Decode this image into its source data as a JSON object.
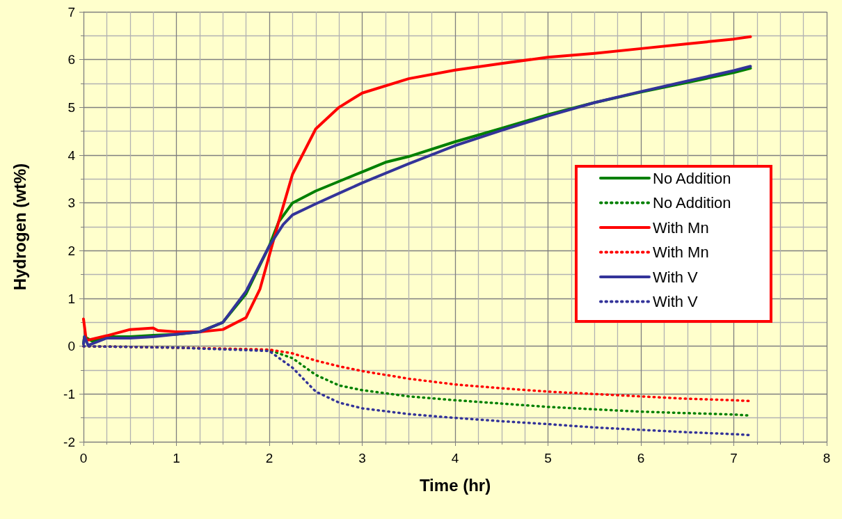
{
  "chart_data": {
    "type": "line",
    "xlabel": "Time (hr)",
    "ylabel": "Hydrogen (wt%)",
    "xlim": [
      0,
      8
    ],
    "xticks": [
      0,
      1,
      2,
      3,
      4,
      5,
      6,
      7,
      8
    ],
    "ylim": [
      -2,
      7
    ],
    "yticks": [
      -2,
      -1,
      0,
      1,
      2,
      3,
      4,
      5,
      6,
      7
    ],
    "grid": true,
    "legend": "right",
    "marker": "none",
    "series": [
      {
        "name": "No Addition",
        "color": "#008000",
        "line_style": "solid",
        "x": [
          0,
          0.01,
          0.1,
          0.25,
          0.5,
          0.75,
          1,
          1.25,
          1.5,
          1.75,
          2,
          2.1,
          2.25,
          2.5,
          2.75,
          3,
          3.25,
          3.5,
          4,
          4.5,
          5,
          5.5,
          6,
          6.5,
          7,
          7.18
        ],
        "values": [
          0.05,
          0.2,
          0.1,
          0.2,
          0.2,
          0.23,
          0.25,
          0.3,
          0.5,
          1.1,
          2.1,
          2.6,
          3.0,
          3.25,
          3.45,
          3.65,
          3.85,
          3.97,
          4.28,
          4.56,
          4.85,
          5.1,
          5.32,
          5.52,
          5.73,
          5.82
        ]
      },
      {
        "name": "No Addition",
        "color": "#008000",
        "line_style": "dotted",
        "x": [
          0,
          1,
          2,
          2.25,
          2.5,
          2.75,
          3,
          3.5,
          4,
          4.5,
          5,
          5.5,
          6,
          6.5,
          7,
          7.18
        ],
        "values": [
          0,
          -0.03,
          -0.08,
          -0.25,
          -0.6,
          -0.82,
          -0.92,
          -1.05,
          -1.13,
          -1.2,
          -1.27,
          -1.32,
          -1.37,
          -1.4,
          -1.43,
          -1.45
        ]
      },
      {
        "name": "With Mn",
        "color": "#ff0000",
        "line_style": "solid",
        "x": [
          0,
          0.03,
          0.25,
          0.5,
          0.75,
          0.8,
          1,
          1.25,
          1.5,
          1.75,
          1.9,
          2,
          2.1,
          2.25,
          2.5,
          2.75,
          3,
          3.5,
          4,
          4.5,
          5,
          5.5,
          6,
          6.5,
          7,
          7.18
        ],
        "values": [
          0.57,
          0.12,
          0.22,
          0.35,
          0.38,
          0.33,
          0.3,
          0.3,
          0.35,
          0.6,
          1.2,
          1.9,
          2.6,
          3.6,
          4.55,
          5.0,
          5.3,
          5.6,
          5.78,
          5.92,
          6.05,
          6.13,
          6.23,
          6.33,
          6.43,
          6.48
        ]
      },
      {
        "name": "With Mn",
        "color": "#ff0000",
        "line_style": "dotted",
        "x": [
          0,
          1,
          2,
          2.25,
          2.5,
          2.75,
          3,
          3.5,
          4,
          4.5,
          5,
          5.5,
          6,
          6.5,
          7,
          7.2
        ],
        "values": [
          0,
          -0.03,
          -0.07,
          -0.15,
          -0.3,
          -0.42,
          -0.52,
          -0.68,
          -0.8,
          -0.88,
          -0.95,
          -1.0,
          -1.05,
          -1.1,
          -1.13,
          -1.15
        ]
      },
      {
        "name": "With V",
        "color": "#333399",
        "line_style": "solid",
        "x": [
          0,
          0.01,
          0.05,
          0.25,
          0.5,
          0.75,
          1,
          1.25,
          1.5,
          1.75,
          2,
          2.15,
          2.25,
          2.5,
          2.75,
          3,
          3.5,
          4,
          4.5,
          5,
          5.5,
          6,
          6.5,
          7,
          7.18
        ],
        "values": [
          0.05,
          0.2,
          0.02,
          0.17,
          0.17,
          0.2,
          0.25,
          0.3,
          0.5,
          1.15,
          2.1,
          2.55,
          2.75,
          2.98,
          3.2,
          3.42,
          3.82,
          4.2,
          4.52,
          4.82,
          5.1,
          5.33,
          5.55,
          5.77,
          5.86
        ]
      },
      {
        "name": "With V",
        "color": "#333399",
        "line_style": "dotted",
        "x": [
          0,
          1,
          2,
          2.25,
          2.5,
          2.75,
          3,
          3.5,
          4,
          4.5,
          5,
          5.5,
          6,
          6.5,
          7,
          7.18
        ],
        "values": [
          0,
          -0.03,
          -0.1,
          -0.45,
          -0.95,
          -1.18,
          -1.3,
          -1.42,
          -1.5,
          -1.57,
          -1.63,
          -1.7,
          -1.75,
          -1.8,
          -1.84,
          -1.86
        ]
      }
    ]
  }
}
